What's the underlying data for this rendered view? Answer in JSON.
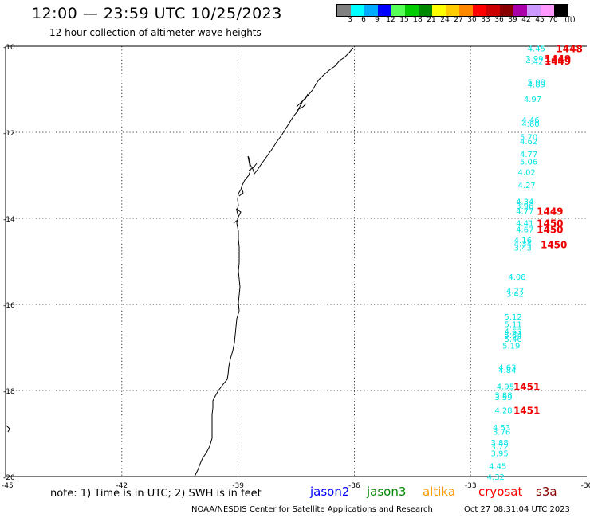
{
  "title": "12:00 — 23:59 UTC 10/25/2023",
  "subtitle": "12 hour collection of altimeter wave heights",
  "legend": {
    "labels": [
      "3",
      "6",
      "9",
      "12",
      "15",
      "18",
      "21",
      "24",
      "27",
      "30",
      "33",
      "36",
      "39",
      "42",
      "45",
      "70",
      "(ft)"
    ],
    "colors": [
      "#808080",
      "#00ffff",
      "#00aaff",
      "#0000ff",
      "#55ff55",
      "#00cc00",
      "#008800",
      "#ffff00",
      "#ffcc00",
      "#ff8800",
      "#ff0000",
      "#cc0000",
      "#880000",
      "#aa00aa",
      "#cc99ff",
      "#ff99ff",
      "#000000"
    ]
  },
  "axes": {
    "lat_labels": [
      "-10",
      "-12",
      "-14",
      "-16",
      "-18",
      "-20"
    ],
    "lon_labels": [
      "-45",
      "-42",
      "-39",
      "-36",
      "-33",
      "-30"
    ]
  },
  "wave_heights": [
    {
      "lat": -10.05,
      "lon": -31.3,
      "v": "4.45"
    },
    {
      "lat": -10.28,
      "lon": -31.35,
      "v": "3.99"
    },
    {
      "lat": -10.34,
      "lon": -31.35,
      "v": "4.42"
    },
    {
      "lat": -10.82,
      "lon": -31.3,
      "v": "5.00"
    },
    {
      "lat": -10.88,
      "lon": -31.3,
      "v": "4.89"
    },
    {
      "lat": -11.22,
      "lon": -31.4,
      "v": "4.97"
    },
    {
      "lat": -11.7,
      "lon": -31.45,
      "v": "4.46"
    },
    {
      "lat": -11.8,
      "lon": -31.45,
      "v": "4.60"
    },
    {
      "lat": -12.1,
      "lon": -31.5,
      "v": "5.70"
    },
    {
      "lat": -12.2,
      "lon": -31.5,
      "v": "4.62"
    },
    {
      "lat": -12.5,
      "lon": -31.5,
      "v": "4.77"
    },
    {
      "lat": -12.68,
      "lon": -31.5,
      "v": "5.06"
    },
    {
      "lat": -12.92,
      "lon": -31.55,
      "v": "4.02"
    },
    {
      "lat": -13.22,
      "lon": -31.55,
      "v": "4.27"
    },
    {
      "lat": -13.6,
      "lon": -31.6,
      "v": "4.34"
    },
    {
      "lat": -13.7,
      "lon": -31.6,
      "v": "3.96"
    },
    {
      "lat": -13.82,
      "lon": -31.6,
      "v": "4.77"
    },
    {
      "lat": -14.1,
      "lon": -31.6,
      "v": "4.41"
    },
    {
      "lat": -14.25,
      "lon": -31.6,
      "v": "4.67"
    },
    {
      "lat": -14.5,
      "lon": -31.65,
      "v": "4.16"
    },
    {
      "lat": -14.58,
      "lon": -31.65,
      "v": "4.34"
    },
    {
      "lat": -14.68,
      "lon": -31.65,
      "v": "3.43"
    },
    {
      "lat": -15.35,
      "lon": -31.8,
      "v": "4.08"
    },
    {
      "lat": -15.68,
      "lon": -31.85,
      "v": "4.27"
    },
    {
      "lat": -15.75,
      "lon": -31.85,
      "v": "3.42"
    },
    {
      "lat": -16.28,
      "lon": -31.9,
      "v": "5.12"
    },
    {
      "lat": -16.45,
      "lon": -31.9,
      "v": "5.11"
    },
    {
      "lat": -16.62,
      "lon": -31.9,
      "v": "4.63"
    },
    {
      "lat": -16.7,
      "lon": -31.9,
      "v": "5.64"
    },
    {
      "lat": -16.8,
      "lon": -31.9,
      "v": "5.46"
    },
    {
      "lat": -16.95,
      "lon": -31.95,
      "v": "5.19"
    },
    {
      "lat": -17.45,
      "lon": -32.05,
      "v": "4.63"
    },
    {
      "lat": -17.52,
      "lon": -32.05,
      "v": "4.84"
    },
    {
      "lat": -17.9,
      "lon": -32.1,
      "v": "4.95"
    },
    {
      "lat": -18.1,
      "lon": -32.15,
      "v": "3.88"
    },
    {
      "lat": -18.15,
      "lon": -32.15,
      "v": "3.59"
    },
    {
      "lat": -18.45,
      "lon": -32.15,
      "v": "4.28"
    },
    {
      "lat": -18.85,
      "lon": -32.2,
      "v": "4.53"
    },
    {
      "lat": -18.95,
      "lon": -32.2,
      "v": "3.76"
    },
    {
      "lat": -19.2,
      "lon": -32.25,
      "v": "3.88"
    },
    {
      "lat": -19.3,
      "lon": -32.25,
      "v": "3.72"
    },
    {
      "lat": -19.45,
      "lon": -32.25,
      "v": "3.95"
    },
    {
      "lat": -19.75,
      "lon": -32.3,
      "v": "4.45"
    },
    {
      "lat": -20.0,
      "lon": -32.35,
      "v": "4.32"
    }
  ],
  "pass_times": [
    {
      "lat": -10.05,
      "lon": -30.45,
      "t": "1448"
    },
    {
      "lat": -10.28,
      "lon": -30.75,
      "t": "1449"
    },
    {
      "lat": -10.33,
      "lon": -30.75,
      "t": "1449"
    },
    {
      "lat": -13.82,
      "lon": -30.95,
      "t": "1449"
    },
    {
      "lat": -14.1,
      "lon": -30.95,
      "t": "1450"
    },
    {
      "lat": -14.25,
      "lon": -30.95,
      "t": "1450"
    },
    {
      "lat": -14.6,
      "lon": -30.85,
      "t": "1450"
    },
    {
      "lat": -17.9,
      "lon": -31.55,
      "t": "1451"
    },
    {
      "lat": -18.45,
      "lon": -31.55,
      "t": "1451"
    }
  ],
  "colors": {
    "wave_value": "#00e5e5",
    "pass_time": "#ee0000",
    "coast": "#000000",
    "grid": "#000000"
  },
  "note": "note: 1) Time is in UTC; 2) SWH is in feet",
  "satellites": [
    {
      "name": "jason2",
      "color": "#0000ff"
    },
    {
      "name": "jason3",
      "color": "#008800"
    },
    {
      "name": "altika",
      "color": "#ff9900"
    },
    {
      "name": "cryosat",
      "color": "#ff0000"
    },
    {
      "name": "s3a",
      "color": "#880000"
    }
  ],
  "footer": "NOAA/NESDIS Center for Satellite Applications and Research",
  "footer_time": "Oct 27 08:31:04 UTC 2023"
}
